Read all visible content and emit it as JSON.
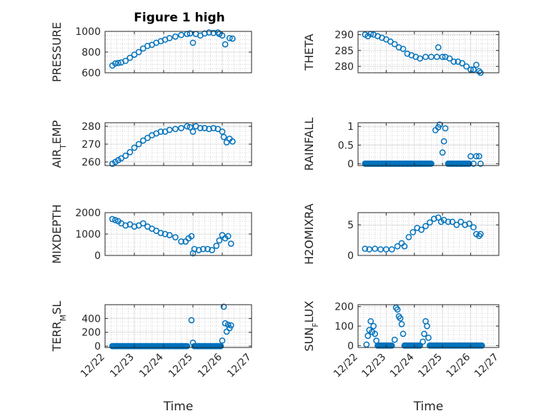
{
  "figure": {
    "title": "Figure 1 high"
  },
  "colors": {
    "marker": "#0072bd",
    "axis": "#262626",
    "grid": "#b4b4b4"
  },
  "chart_data": [
    {
      "id": "pressure",
      "type": "scatter",
      "title": "Figure 1 high",
      "ylabel": "PRESSURE",
      "ylim": [
        600,
        1000
      ],
      "yticks": [
        600,
        800,
        1000
      ],
      "yticklabels": [
        "600",
        "800",
        "1000"
      ],
      "x": [
        22.25,
        22.35,
        22.45,
        22.55,
        22.7,
        22.85,
        23.0,
        23.15,
        23.3,
        23.45,
        23.6,
        23.75,
        23.9,
        24.05,
        24.2,
        24.4,
        24.6,
        24.8,
        24.9,
        25.0,
        25.1,
        25.25,
        25.4,
        25.55,
        25.7,
        25.85,
        25.9,
        26.0,
        26.1,
        26.25,
        26.35
      ],
      "y": [
        670,
        690,
        695,
        700,
        715,
        745,
        775,
        800,
        835,
        860,
        870,
        890,
        905,
        920,
        935,
        950,
        965,
        975,
        980,
        890,
        975,
        960,
        980,
        990,
        985,
        990,
        975,
        960,
        875,
        935,
        930
      ]
    },
    {
      "id": "theta",
      "type": "scatter",
      "ylabel": "THETA",
      "ylim": [
        278,
        291
      ],
      "yticks": [
        280,
        285,
        290
      ],
      "yticklabels": [
        "280",
        "285",
        "290"
      ],
      "x": [
        22.25,
        22.35,
        22.45,
        22.55,
        22.7,
        22.85,
        23.0,
        23.15,
        23.3,
        23.45,
        23.6,
        23.75,
        23.9,
        24.05,
        24.2,
        24.4,
        24.6,
        24.8,
        24.85,
        25.0,
        25.1,
        25.25,
        25.4,
        25.55,
        25.7,
        25.85,
        26.0,
        26.1,
        26.2,
        26.3,
        26.35
      ],
      "y": [
        290,
        289.5,
        290.2,
        290,
        289.5,
        289,
        288.5,
        287.8,
        287,
        286,
        285.5,
        284,
        283.5,
        283,
        282.5,
        283,
        283,
        283,
        286,
        283,
        283,
        282.5,
        281.5,
        281.5,
        281,
        280,
        279,
        279,
        280.5,
        278.5,
        278
      ]
    },
    {
      "id": "air_temp",
      "type": "scatter",
      "ylabel": "AIR_TEMP",
      "ylabel_main": "AIR",
      "ylabel_sub": "T",
      "ylabel_rest": "EMP",
      "ylim": [
        258,
        282
      ],
      "yticks": [
        260,
        270,
        280
      ],
      "yticklabels": [
        "260",
        "270",
        "280"
      ],
      "x": [
        22.25,
        22.35,
        22.45,
        22.55,
        22.7,
        22.85,
        23.0,
        23.15,
        23.3,
        23.45,
        23.6,
        23.75,
        23.9,
        24.05,
        24.2,
        24.4,
        24.6,
        24.8,
        24.9,
        25.0,
        25.1,
        25.25,
        25.4,
        25.55,
        25.7,
        25.85,
        26.0,
        26.05,
        26.15,
        26.25,
        26.35
      ],
      "y": [
        259,
        260,
        261,
        262,
        263.5,
        265.5,
        268,
        270,
        272,
        273.5,
        275,
        276,
        277,
        277,
        278,
        278.5,
        279,
        280,
        279.5,
        277,
        280,
        279,
        279,
        278.5,
        279,
        278.5,
        277,
        274,
        271,
        273,
        271.5
      ]
    },
    {
      "id": "rainfall",
      "type": "scatter",
      "ylabel": "RAINFALL",
      "ylim": [
        -0.05,
        1.1
      ],
      "yticks": [
        0,
        0.5,
        1
      ],
      "yticklabels": [
        "0",
        "0.5",
        "1"
      ],
      "x": [
        22.25,
        22.35,
        22.45,
        22.55,
        22.7,
        22.85,
        23.0,
        23.15,
        23.3,
        23.45,
        23.6,
        23.75,
        23.9,
        24.05,
        24.2,
        24.4,
        24.6,
        24.75,
        24.85,
        24.9,
        25.0,
        25.05,
        25.1,
        25.2,
        25.35,
        25.5,
        25.65,
        25.8,
        25.95,
        26.0,
        26.1,
        26.2,
        26.3,
        26.35
      ],
      "y": [
        0,
        0,
        0,
        0,
        0,
        0,
        0,
        0,
        0,
        0,
        0,
        0,
        0,
        0,
        0,
        0,
        0,
        0.9,
        0.98,
        1.05,
        0.3,
        0.6,
        0.95,
        0,
        0,
        0,
        0,
        0,
        0,
        0.2,
        0,
        0.2,
        0.2,
        0
      ]
    },
    {
      "id": "mixdepth",
      "type": "scatter",
      "ylabel": "MIXDEPTH",
      "ylim": [
        0,
        2000
      ],
      "yticks": [
        0,
        1000,
        2000
      ],
      "yticklabels": [
        "0",
        "1000",
        "2000"
      ],
      "x": [
        22.25,
        22.35,
        22.45,
        22.55,
        22.7,
        22.85,
        23.0,
        23.15,
        23.3,
        23.45,
        23.6,
        23.75,
        23.9,
        24.05,
        24.2,
        24.4,
        24.6,
        24.75,
        24.85,
        24.95,
        25.0,
        25.05,
        25.2,
        25.35,
        25.5,
        25.65,
        25.8,
        25.9,
        26.0,
        26.1,
        26.2,
        26.3
      ],
      "y": [
        1700,
        1650,
        1600,
        1500,
        1400,
        1450,
        1350,
        1400,
        1500,
        1350,
        1250,
        1150,
        1050,
        1000,
        950,
        850,
        650,
        650,
        800,
        900,
        100,
        300,
        250,
        300,
        300,
        250,
        450,
        700,
        950,
        800,
        900,
        550
      ]
    },
    {
      "id": "h2omixra",
      "type": "scatter",
      "ylabel": "H2OMIXRA",
      "ylim": [
        0,
        7
      ],
      "yticks": [
        0,
        5
      ],
      "yticklabels": [
        "0",
        "5"
      ],
      "x": [
        22.25,
        22.4,
        22.6,
        22.8,
        23.0,
        23.2,
        23.4,
        23.55,
        23.65,
        23.8,
        23.95,
        24.1,
        24.25,
        24.4,
        24.55,
        24.7,
        24.85,
        24.95,
        25.05,
        25.2,
        25.35,
        25.5,
        25.65,
        25.8,
        25.95,
        26.1,
        26.2,
        26.3,
        26.35
      ],
      "y": [
        1.1,
        1.0,
        1.1,
        1.0,
        1.0,
        1.0,
        1.5,
        2.0,
        1.5,
        3.0,
        3.8,
        4.5,
        4.2,
        4.8,
        5.4,
        6.0,
        6.2,
        5.5,
        5.8,
        5.5,
        5.5,
        5.0,
        5.5,
        5.0,
        5.2,
        4.6,
        3.5,
        3.2,
        3.5
      ]
    },
    {
      "id": "terr_msl",
      "type": "scatter",
      "ylabel": "TERR_MSL",
      "ylabel_main": "TERR",
      "ylabel_sub": "M",
      "ylabel_rest": "SL",
      "ylim": [
        -20,
        600
      ],
      "yticks": [
        0,
        200,
        400
      ],
      "yticklabels": [
        "0",
        "200",
        "400"
      ],
      "xlabel": "Time",
      "xlim": [
        22,
        27
      ],
      "xticks": [
        22,
        23,
        24,
        25,
        26,
        27
      ],
      "xticklabels": [
        "12/22",
        "12/23",
        "12/24",
        "12/25",
        "12/26",
        "12/27"
      ],
      "x": [
        22.25,
        22.4,
        22.6,
        22.8,
        23.0,
        23.2,
        23.4,
        23.6,
        23.8,
        24.0,
        24.2,
        24.4,
        24.6,
        24.8,
        24.95,
        25.0,
        25.05,
        25.2,
        25.4,
        25.6,
        25.8,
        25.95,
        26.0,
        26.05,
        26.1,
        26.15,
        26.2,
        26.25,
        26.3
      ],
      "y": [
        0,
        0,
        0,
        0,
        0,
        0,
        0,
        0,
        0,
        0,
        0,
        0,
        0,
        0,
        375,
        50,
        0,
        0,
        0,
        0,
        0,
        0,
        80,
        570,
        330,
        210,
        310,
        260,
        300
      ]
    },
    {
      "id": "sunflux",
      "type": "scatter",
      "ylabel": "SUNFLUX",
      "ylabel_main": "SUN",
      "ylabel_sub": "F",
      "ylabel_rest": "LUX",
      "ylim": [
        -10,
        210
      ],
      "yticks": [
        0,
        100,
        200
      ],
      "yticklabels": [
        "0",
        "100",
        "200"
      ],
      "xlabel": "Time",
      "xlim": [
        22,
        27
      ],
      "xticks": [
        22,
        23,
        24,
        25,
        26,
        27
      ],
      "xticklabels": [
        "12/22",
        "12/23",
        "12/24",
        "12/25",
        "12/26",
        "12/27"
      ],
      "x": [
        22.3,
        22.35,
        22.4,
        22.45,
        22.5,
        22.55,
        22.6,
        22.65,
        22.7,
        22.8,
        22.9,
        23.0,
        23.1,
        23.2,
        23.3,
        23.35,
        23.4,
        23.45,
        23.5,
        23.55,
        23.6,
        23.65,
        23.7,
        23.8,
        23.9,
        24.0,
        24.1,
        24.2,
        24.3,
        24.35,
        24.4,
        24.45,
        24.5,
        24.55,
        24.6,
        24.7,
        24.8,
        24.9,
        25.0,
        25.2,
        25.4,
        25.6,
        25.8,
        26.0,
        26.2,
        26.4
      ],
      "y": [
        5,
        50,
        80,
        125,
        70,
        100,
        60,
        25,
        0,
        0,
        0,
        0,
        0,
        0,
        30,
        195,
        185,
        150,
        140,
        110,
        60,
        0,
        0,
        0,
        0,
        0,
        0,
        0,
        20,
        60,
        125,
        100,
        40,
        0,
        0,
        0,
        0,
        0,
        0,
        0,
        0,
        0,
        0,
        0,
        0,
        0
      ]
    }
  ]
}
